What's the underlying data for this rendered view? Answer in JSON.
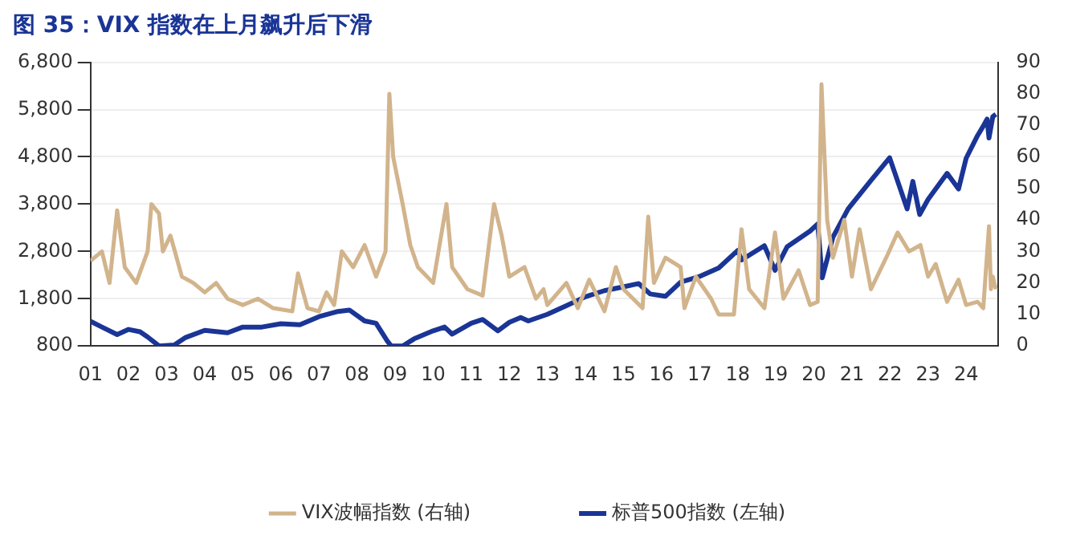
{
  "chart_data": {
    "type": "line",
    "title": "图 35：VIX 指数在上月飙升后下滑",
    "xlim": [
      2001,
      2024.85
    ],
    "xticks": [
      {
        "value": 2001,
        "label": "01"
      },
      {
        "value": 2002,
        "label": "02"
      },
      {
        "value": 2003,
        "label": "03"
      },
      {
        "value": 2004,
        "label": "04"
      },
      {
        "value": 2005,
        "label": "05"
      },
      {
        "value": 2006,
        "label": "06"
      },
      {
        "value": 2007,
        "label": "07"
      },
      {
        "value": 2008,
        "label": "08"
      },
      {
        "value": 2009,
        "label": "09"
      },
      {
        "value": 2010,
        "label": "10"
      },
      {
        "value": 2011,
        "label": "11"
      },
      {
        "value": 2012,
        "label": "12"
      },
      {
        "value": 2013,
        "label": "13"
      },
      {
        "value": 2014,
        "label": "14"
      },
      {
        "value": 2015,
        "label": "15"
      },
      {
        "value": 2016,
        "label": "16"
      },
      {
        "value": 2017,
        "label": "17"
      },
      {
        "value": 2018,
        "label": "18"
      },
      {
        "value": 2019,
        "label": "19"
      },
      {
        "value": 2020,
        "label": "20"
      },
      {
        "value": 2021,
        "label": "21"
      },
      {
        "value": 2022,
        "label": "22"
      },
      {
        "value": 2023,
        "label": "23"
      },
      {
        "value": 2024,
        "label": "24"
      }
    ],
    "ylim": [
      800,
      6800
    ],
    "yticks": [
      {
        "value": 800,
        "label": "800"
      },
      {
        "value": 1800,
        "label": "1,800"
      },
      {
        "value": 2800,
        "label": "2,800"
      },
      {
        "value": 3800,
        "label": "3,800"
      },
      {
        "value": 4800,
        "label": "4,800"
      },
      {
        "value": 5800,
        "label": "5,800"
      },
      {
        "value": 6800,
        "label": "6,800"
      }
    ],
    "y2lim": [
      0,
      90
    ],
    "y2ticks": [
      0,
      10,
      20,
      30,
      40,
      50,
      60,
      70,
      80,
      90
    ],
    "grid": "y",
    "legend": "bottom",
    "marker": "none",
    "line_style": "solid",
    "series": [
      {
        "name": "标普500指数 (左轴)",
        "color": "#1a3596",
        "x": [
          2001.0,
          2001.3,
          2001.7,
          2002.0,
          2002.3,
          2002.5,
          2002.8,
          2003.2,
          2003.5,
          2004.0,
          2004.6,
          2005.0,
          2005.5,
          2006.0,
          2006.5,
          2007.0,
          2007.5,
          2007.8,
          2008.2,
          2008.5,
          2008.8,
          2008.9,
          2009.2,
          2009.5,
          2010.0,
          2010.3,
          2010.5,
          2011.0,
          2011.3,
          2011.7,
          2012.0,
          2012.3,
          2012.5,
          2013.0,
          2013.5,
          2014.0,
          2014.5,
          2015.0,
          2015.4,
          2015.7,
          2016.1,
          2016.5,
          2017.0,
          2017.5,
          2018.0,
          2018.1,
          2018.7,
          2018.98,
          2019.3,
          2019.9,
          2020.1,
          2020.22,
          2020.5,
          2020.9,
          2021.5,
          2021.99,
          2022.45,
          2022.6,
          2022.78,
          2023.0,
          2023.5,
          2023.8,
          2024.0,
          2024.3,
          2024.45,
          2024.55,
          2024.6,
          2024.7,
          2024.78
        ],
        "values": [
          1320,
          1200,
          1040,
          1150,
          1100,
          990,
          800,
          820,
          980,
          1130,
          1080,
          1200,
          1200,
          1270,
          1250,
          1420,
          1530,
          1560,
          1330,
          1280,
          900,
          800,
          800,
          950,
          1120,
          1200,
          1050,
          1280,
          1360,
          1120,
          1300,
          1400,
          1330,
          1470,
          1650,
          1840,
          1970,
          2050,
          2120,
          1900,
          1850,
          2150,
          2270,
          2450,
          2820,
          2620,
          2920,
          2400,
          2900,
          3230,
          3380,
          2240,
          3100,
          3700,
          4300,
          4780,
          3700,
          4280,
          3580,
          3900,
          4450,
          4120,
          4770,
          5250,
          5450,
          5600,
          5200,
          5650,
          5700
        ]
      },
      {
        "name": "VIX波幅指数 (右轴)",
        "color": "#d2b48c",
        "axis": "y2",
        "x": [
          2001.0,
          2001.3,
          2001.5,
          2001.7,
          2001.9,
          2002.2,
          2002.5,
          2002.6,
          2002.8,
          2002.9,
          2003.1,
          2003.4,
          2003.7,
          2004.0,
          2004.3,
          2004.6,
          2005.0,
          2005.4,
          2005.8,
          2006.3,
          2006.45,
          2006.7,
          2007.0,
          2007.2,
          2007.4,
          2007.6,
          2007.9,
          2008.2,
          2008.5,
          2008.75,
          2008.85,
          2008.95,
          2009.2,
          2009.4,
          2009.6,
          2010.0,
          2010.35,
          2010.5,
          2010.9,
          2011.3,
          2011.6,
          2011.8,
          2012.0,
          2012.4,
          2012.7,
          2012.9,
          2013.0,
          2013.5,
          2013.8,
          2014.1,
          2014.5,
          2014.8,
          2015.0,
          2015.5,
          2015.65,
          2015.8,
          2016.1,
          2016.5,
          2016.6,
          2016.9,
          2017.3,
          2017.5,
          2017.9,
          2018.1,
          2018.3,
          2018.7,
          2018.98,
          2019.2,
          2019.6,
          2019.9,
          2020.1,
          2020.2,
          2020.35,
          2020.5,
          2020.8,
          2021.0,
          2021.2,
          2021.5,
          2021.9,
          2022.2,
          2022.5,
          2022.8,
          2023.0,
          2023.2,
          2023.5,
          2023.8,
          2024.0,
          2024.3,
          2024.45,
          2024.6,
          2024.65,
          2024.7,
          2024.78
        ],
        "values": [
          27,
          30,
          20,
          43,
          25,
          20,
          30,
          45,
          42,
          30,
          35,
          22,
          20,
          17,
          20,
          15,
          13,
          15,
          12,
          11,
          23,
          12,
          11,
          17,
          13,
          30,
          25,
          32,
          22,
          30,
          80,
          60,
          45,
          32,
          25,
          20,
          45,
          25,
          18,
          16,
          45,
          35,
          22,
          25,
          15,
          18,
          13,
          20,
          12,
          21,
          11,
          25,
          18,
          12,
          41,
          20,
          28,
          25,
          12,
          22,
          15,
          10,
          10,
          37,
          18,
          12,
          36,
          15,
          24,
          13,
          14,
          83,
          40,
          28,
          40,
          22,
          37,
          18,
          28,
          36,
          30,
          32,
          22,
          26,
          14,
          21,
          13,
          14,
          12,
          38,
          18,
          22,
          18
        ]
      }
    ]
  }
}
